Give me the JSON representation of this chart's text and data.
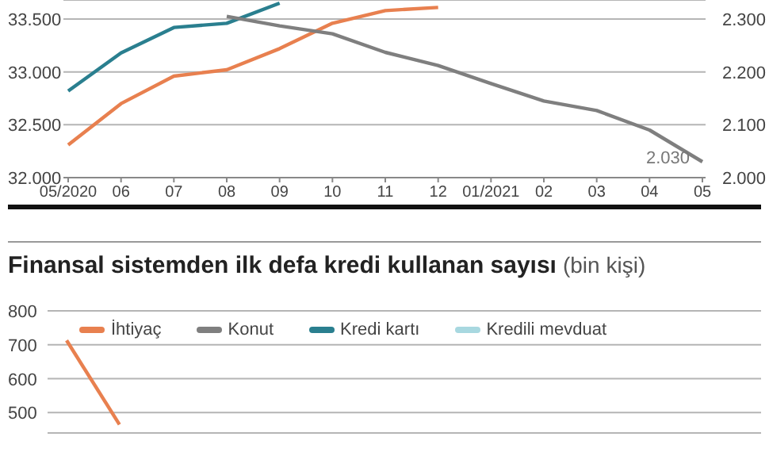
{
  "chart_data": [
    {
      "type": "line",
      "categories": [
        "05/2020",
        "06",
        "07",
        "08",
        "09",
        "10",
        "11",
        "12",
        "01/2021",
        "02",
        "03",
        "04",
        "05"
      ],
      "series": [
        {
          "color": "#2a7f8f",
          "values": [
            32820,
            33180,
            33420,
            33460,
            33650,
            null,
            null,
            null,
            null,
            null,
            null,
            null,
            null
          ]
        },
        {
          "color": "#e8804f",
          "values": [
            32310,
            32700,
            32960,
            33020,
            33220,
            33460,
            33580,
            33610,
            null,
            null,
            null,
            null,
            null
          ]
        },
        {
          "color": "#7f7f7f",
          "axis": "y2",
          "values": [
            null,
            null,
            null,
            2305,
            2287,
            2272,
            2237,
            2212,
            2178,
            2145,
            2127,
            2090,
            2030
          ]
        }
      ],
      "ylim": [
        32000,
        33680
      ],
      "yticks": [
        {
          "value": 32000,
          "label": "32.000"
        },
        {
          "value": 32500,
          "label": "32.500"
        },
        {
          "value": 33000,
          "label": "33.000"
        },
        {
          "value": 33500,
          "label": "33.500"
        }
      ],
      "y2lim": [
        2000,
        2336
      ],
      "y2ticks": [
        {
          "value": 2000,
          "label": "2.000"
        },
        {
          "value": 2100,
          "label": "2.100"
        },
        {
          "value": 2200,
          "label": "2.200"
        },
        {
          "value": 2300,
          "label": "2.300"
        }
      ],
      "annotations": [
        "2.030"
      ],
      "grid": "y",
      "marker": "none",
      "line_style": "solid"
    },
    {
      "type": "line",
      "title": "Finansal sistemden ilk defa kredi kullanan sayısı",
      "subtitle": "(bin kişi)",
      "categories": [
        null,
        null,
        null,
        null,
        null,
        null,
        null,
        null,
        null,
        null,
        null,
        null,
        null
      ],
      "series": [
        {
          "name": "İhtiyaç",
          "color": "#e8804f",
          "values": [
            713,
            465,
            null,
            null,
            null,
            null,
            null,
            null,
            null,
            null,
            null,
            null,
            null
          ]
        },
        {
          "name": "Konut",
          "color": "#7f7f7f",
          "values": [
            null,
            null,
            null,
            null,
            null,
            null,
            null,
            null,
            null,
            null,
            null,
            null,
            null
          ]
        },
        {
          "name": "Kredi kartı",
          "color": "#2a7f8f",
          "values": [
            null,
            null,
            null,
            null,
            null,
            null,
            null,
            null,
            null,
            null,
            null,
            null,
            null
          ]
        },
        {
          "name": "Kredili mevduat",
          "color": "#a8d8e0",
          "values": [
            null,
            null,
            null,
            null,
            null,
            null,
            null,
            null,
            null,
            null,
            null,
            null,
            null
          ]
        }
      ],
      "ylim": [
        440,
        800
      ],
      "yticks": [
        500,
        600,
        700,
        800
      ],
      "tick_labels": "y",
      "grid": "y",
      "legend": "top left",
      "marker": "none",
      "line_style": "solid"
    }
  ]
}
